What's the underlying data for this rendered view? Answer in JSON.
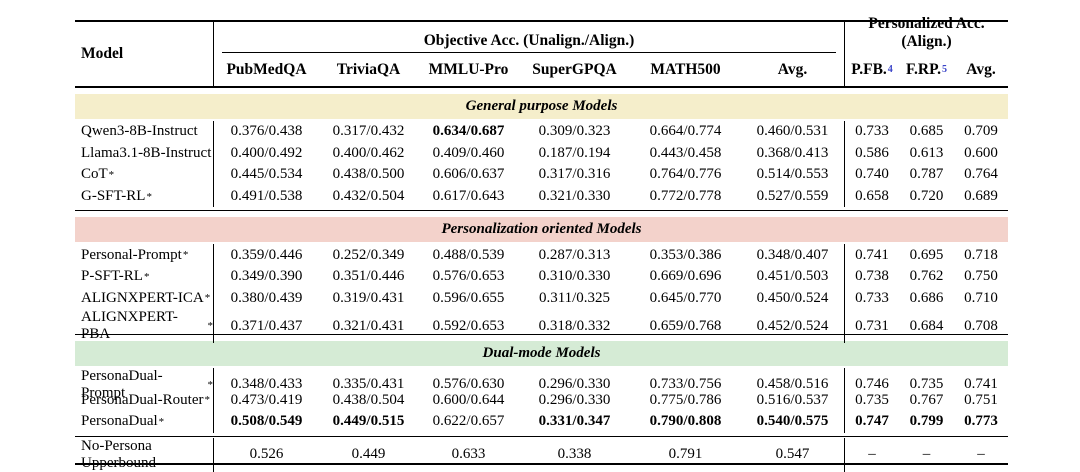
{
  "colors": {
    "section_general": "#F5EECB",
    "section_personalization": "#F3D2CB",
    "section_dual": "#D5EBD5",
    "footnote_link": "#3A44C8",
    "rule": "#000000",
    "background": "#ffffff"
  },
  "star": "*",
  "table": {
    "header": {
      "model_label": "Model",
      "group1": "Objective Acc. (Unalign./Align.)",
      "group2": "Personalized Acc. (Align.)",
      "objective_columns": [
        "PubMedQA",
        "TriviaQA",
        "MMLU-Pro",
        "SuperGPQA",
        "MATH500",
        "Avg."
      ],
      "personalized_columns": [
        {
          "label": "P.FB.",
          "sup": "4"
        },
        {
          "label": "F.RP.",
          "sup": "5"
        },
        {
          "label": "Avg.",
          "sup": ""
        }
      ]
    },
    "sections": [
      {
        "title": "General purpose Models",
        "color": "#F5EECB",
        "rows": [
          {
            "model": "Qwen3-8B-Instruct",
            "starred": false,
            "cells": [
              "0.376/0.438",
              "0.317/0.432",
              "0.634/0.687",
              "0.309/0.323",
              "0.664/0.774",
              "0.460/0.531",
              "0.733",
              "0.685",
              "0.709"
            ],
            "bold": [
              2
            ]
          },
          {
            "model": "Llama3.1-8B-Instruct",
            "starred": false,
            "cells": [
              "0.400/0.492",
              "0.400/0.462",
              "0.409/0.460",
              "0.187/0.194",
              "0.443/0.458",
              "0.368/0.413",
              "0.586",
              "0.613",
              "0.600"
            ],
            "bold": []
          },
          {
            "model": "CoT",
            "starred": true,
            "cells": [
              "0.445/0.534",
              "0.438/0.500",
              "0.606/0.637",
              "0.317/0.316",
              "0.764/0.776",
              "0.514/0.553",
              "0.740",
              "0.787",
              "0.764"
            ],
            "bold": []
          },
          {
            "model": "G-SFT-RL",
            "starred": true,
            "cells": [
              "0.491/0.538",
              "0.432/0.504",
              "0.617/0.643",
              "0.321/0.330",
              "0.772/0.778",
              "0.527/0.559",
              "0.658",
              "0.720",
              "0.689"
            ],
            "bold": []
          }
        ]
      },
      {
        "title": "Personalization oriented Models",
        "color": "#F3D2CB",
        "rows": [
          {
            "model": "Personal-Prompt",
            "starred": true,
            "cells": [
              "0.359/0.446",
              "0.252/0.349",
              "0.488/0.539",
              "0.287/0.313",
              "0.353/0.386",
              "0.348/0.407",
              "0.741",
              "0.695",
              "0.718"
            ],
            "bold": []
          },
          {
            "model": "P-SFT-RL",
            "starred": true,
            "cells": [
              "0.349/0.390",
              "0.351/0.446",
              "0.576/0.653",
              "0.310/0.330",
              "0.669/0.696",
              "0.451/0.503",
              "0.738",
              "0.762",
              "0.750"
            ],
            "bold": []
          },
          {
            "model": "ALIGNXPERT-ICA",
            "starred": true,
            "cells": [
              "0.380/0.439",
              "0.319/0.431",
              "0.596/0.655",
              "0.311/0.325",
              "0.645/0.770",
              "0.450/0.524",
              "0.733",
              "0.686",
              "0.710"
            ],
            "bold": []
          },
          {
            "model": "ALIGNXPERT-PBA",
            "starred": true,
            "cells": [
              "0.371/0.437",
              "0.321/0.431",
              "0.592/0.653",
              "0.318/0.332",
              "0.659/0.768",
              "0.452/0.524",
              "0.731",
              "0.684",
              "0.708"
            ],
            "bold": []
          }
        ]
      },
      {
        "title": "Dual-mode Models",
        "color": "#D5EBD5",
        "rows": [
          {
            "model": "PersonaDual-Prompt",
            "starred": true,
            "cells": [
              "0.348/0.433",
              "0.335/0.431",
              "0.576/0.630",
              "0.296/0.330",
              "0.733/0.756",
              "0.458/0.516",
              "0.746",
              "0.735",
              "0.741"
            ],
            "bold": []
          },
          {
            "model": "PersonaDual-Router",
            "starred": true,
            "cells": [
              "0.473/0.419",
              "0.438/0.504",
              "0.600/0.644",
              "0.296/0.330",
              "0.775/0.786",
              "0.516/0.537",
              "0.735",
              "0.767",
              "0.751"
            ],
            "bold": []
          },
          {
            "model": "PersonaDual",
            "starred": true,
            "cells": [
              "0.508/0.549",
              "0.449/0.515",
              "0.622/0.657",
              "0.331/0.347",
              "0.790/0.808",
              "0.540/0.575",
              "0.747",
              "0.799",
              "0.773"
            ],
            "bold": [
              0,
              1,
              3,
              4,
              5,
              6,
              7,
              8
            ]
          }
        ]
      }
    ],
    "footer": {
      "model": "No-Persona Upperbound",
      "cells": [
        "0.526",
        "0.449",
        "0.633",
        "0.338",
        "0.791",
        "0.547",
        "–",
        "–",
        "–"
      ]
    }
  }
}
